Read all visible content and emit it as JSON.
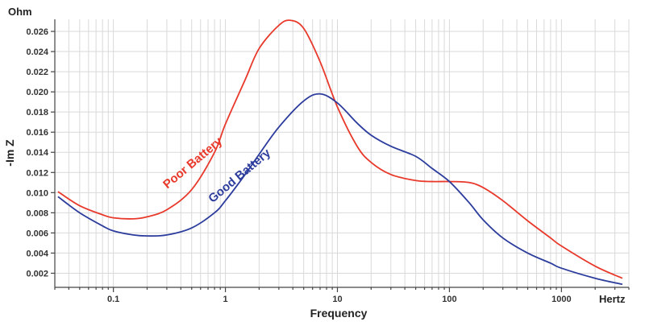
{
  "chart_data": {
    "type": "line",
    "xlabel": "Frequency",
    "ylabel": "-Im Z",
    "x_unit": "Hertz",
    "y_unit": "Ohm",
    "x_scale": "log",
    "xlim": [
      0.03,
      4000
    ],
    "ylim": [
      0.0006,
      0.0272
    ],
    "x_ticks": [
      0.1,
      1,
      10,
      100,
      1000
    ],
    "x_tick_labels": [
      "0.1",
      "1",
      "10",
      "100",
      "1000"
    ],
    "y_ticks": [
      0.002,
      0.004,
      0.006,
      0.008,
      0.01,
      0.012,
      0.014,
      0.016,
      0.018,
      0.02,
      0.022,
      0.024,
      0.026
    ],
    "y_tick_labels": [
      "0.002",
      "0.004",
      "0.006",
      "0.008",
      "0.010",
      "0.012",
      "0.014",
      "0.016",
      "0.018",
      "0.020",
      "0.022",
      "0.024",
      "0.026"
    ],
    "grid": true,
    "series": [
      {
        "name": "Poor Battery",
        "color": "#e8392b",
        "x": [
          0.032,
          0.05,
          0.08,
          0.1,
          0.15,
          0.2,
          0.3,
          0.5,
          0.8,
          1,
          1.5,
          2,
          3,
          3.8,
          5,
          7,
          10,
          15,
          20,
          30,
          50,
          70,
          100,
          150,
          200,
          300,
          500,
          800,
          1000,
          2000,
          3500
        ],
        "y": [
          0.0101,
          0.0087,
          0.0078,
          0.0075,
          0.0074,
          0.0076,
          0.0083,
          0.0103,
          0.014,
          0.0168,
          0.0212,
          0.0243,
          0.0266,
          0.0271,
          0.0263,
          0.023,
          0.0185,
          0.0146,
          0.013,
          0.0118,
          0.0112,
          0.0111,
          0.0111,
          0.011,
          0.0105,
          0.0092,
          0.0072,
          0.0055,
          0.0047,
          0.0027,
          0.0015
        ]
      },
      {
        "name": "Good Battery",
        "color": "#2c3c9c",
        "x": [
          0.032,
          0.05,
          0.08,
          0.1,
          0.15,
          0.2,
          0.3,
          0.5,
          0.8,
          1,
          1.5,
          2,
          3,
          5,
          7,
          10,
          15,
          20,
          30,
          50,
          70,
          100,
          150,
          200,
          300,
          500,
          800,
          1000,
          2000,
          3500
        ],
        "y": [
          0.0096,
          0.008,
          0.0067,
          0.0062,
          0.0058,
          0.0057,
          0.0058,
          0.0065,
          0.008,
          0.0092,
          0.0118,
          0.0138,
          0.0165,
          0.0191,
          0.0198,
          0.0189,
          0.0169,
          0.0157,
          0.0146,
          0.0136,
          0.0124,
          0.0111,
          0.009,
          0.0073,
          0.0055,
          0.004,
          0.003,
          0.0025,
          0.0015,
          0.0009
        ]
      }
    ]
  }
}
